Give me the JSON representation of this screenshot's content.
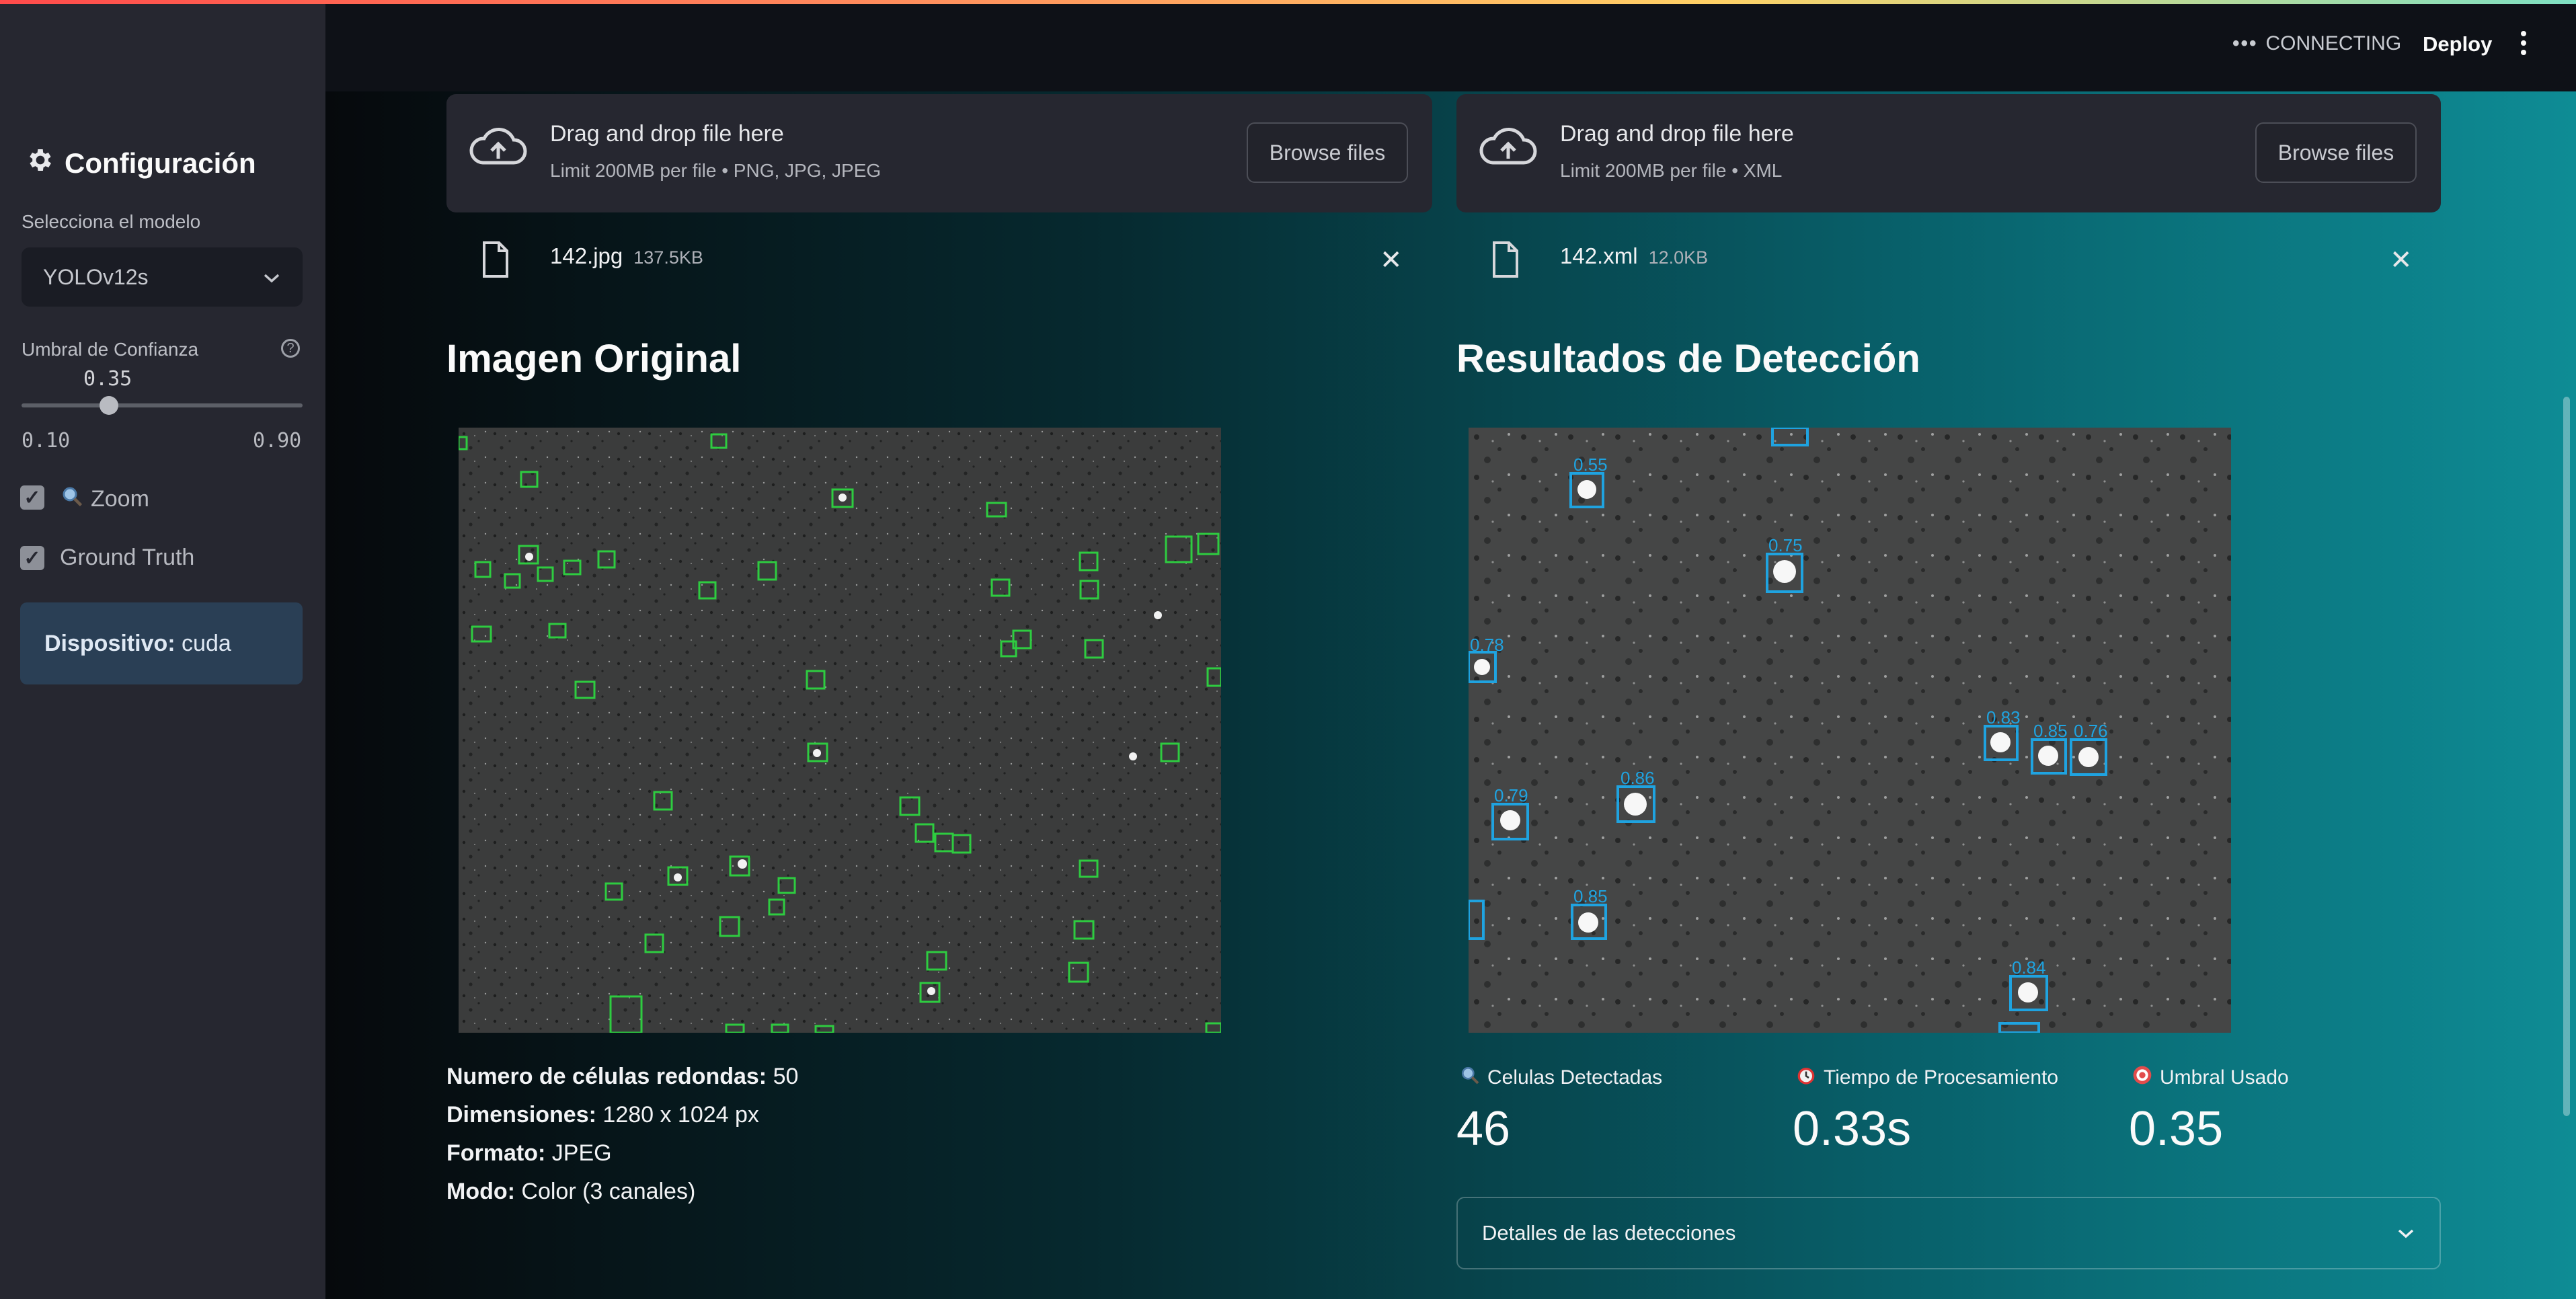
{
  "header": {
    "status": "CONNECTING",
    "deploy_label": "Deploy"
  },
  "sidebar": {
    "title": "Configuración",
    "model_label": "Selecciona el modelo",
    "model_value": "YOLOv12s",
    "threshold_label": "Umbral de Confianza",
    "threshold_value": "0.35",
    "threshold_min": "0.10",
    "threshold_max": "0.90",
    "threshold_fraction": 0.3125,
    "zoom_label": "Zoom",
    "zoom_checked": true,
    "gt_label": "Ground Truth",
    "gt_checked": true,
    "device_key": "Dispositivo:",
    "device_value": "cuda"
  },
  "uploaders": [
    {
      "title": "Drag and drop file here",
      "limit": "Limit 200MB per file • PNG, JPG, JPEG",
      "browse_label": "Browse files",
      "file_name": "142.jpg",
      "file_size": "137.5KB"
    },
    {
      "title": "Drag and drop file here",
      "limit": "Limit 200MB per file • XML",
      "browse_label": "Browse files",
      "file_name": "142.xml",
      "file_size": "12.0KB"
    }
  ],
  "original": {
    "heading": "Imagen Original",
    "cells_key": "Numero de células redondas:",
    "cells_value": "50",
    "dims_key": "Dimensiones:",
    "dims_value": "1280 x 1024 px",
    "format_key": "Formato:",
    "format_value": "JPEG",
    "mode_key": "Modo:",
    "mode_value": "Color (3 canales)"
  },
  "detection": {
    "heading": "Resultados de Detección",
    "box_labels": [
      "0.55",
      "0.75",
      "0.78",
      "0.83",
      "0.85",
      "0.76",
      "0.86",
      "0.79",
      "0.85",
      "0.84"
    ],
    "metrics": [
      {
        "label": "Celulas Detectadas",
        "value": "46",
        "icon": "magnifier-icon"
      },
      {
        "label": "Tiempo de Procesamiento",
        "value": "0.33s",
        "icon": "alarm-clock-icon"
      },
      {
        "label": "Umbral Usado",
        "value": "0.35",
        "icon": "target-icon"
      }
    ],
    "expander_label": "Detalles de las detecciones"
  },
  "colors": {
    "gt_box": "#2ecc40",
    "det_box": "#1fa3e0",
    "sidebar_bg": "#262730",
    "device_bg": "#2a3f55"
  }
}
